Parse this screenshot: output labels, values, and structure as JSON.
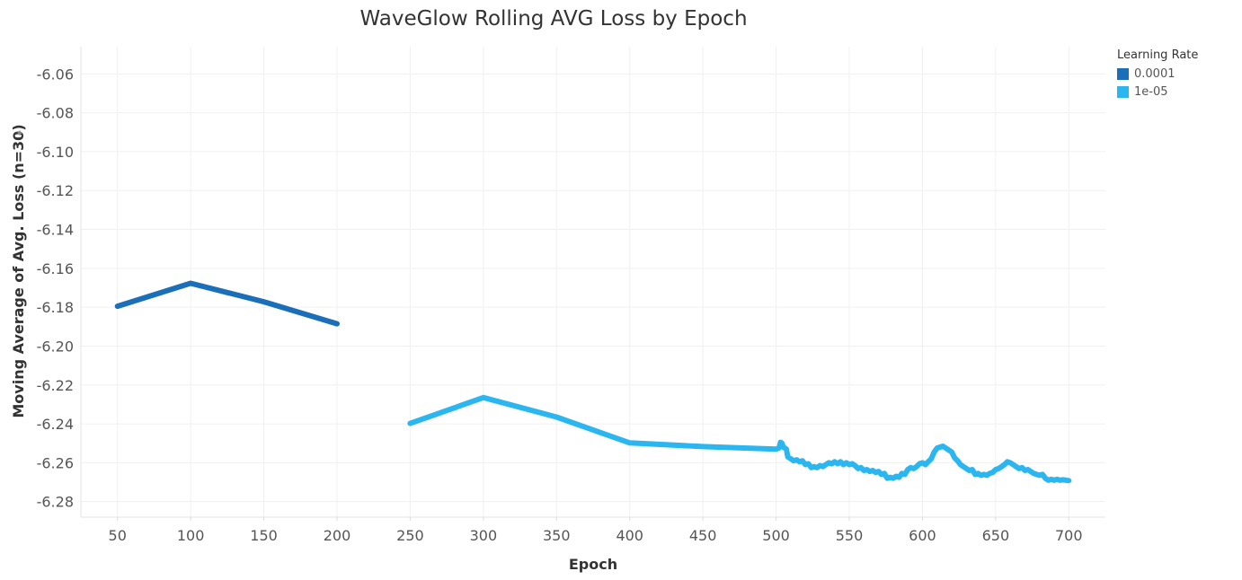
{
  "chart_data": {
    "type": "line",
    "title": "WaveGlow Rolling AVG Loss by Epoch",
    "xlabel": "Epoch",
    "ylabel": "Moving Average of Avg. Loss (n=30)",
    "xlim": [
      25,
      725
    ],
    "ylim": [
      -6.288,
      -6.046
    ],
    "x_ticks": [
      50,
      100,
      150,
      200,
      250,
      300,
      350,
      400,
      450,
      500,
      550,
      600,
      650,
      700
    ],
    "y_ticks": [
      -6.28,
      -6.26,
      -6.24,
      -6.22,
      -6.2,
      -6.18,
      -6.16,
      -6.14,
      -6.12,
      -6.1,
      -6.08,
      -6.06
    ],
    "grid": true,
    "legend": {
      "title": "Learning Rate",
      "position": "top-right"
    },
    "series": [
      {
        "name": "0.0001",
        "color": "#1a6fb8",
        "points": [
          [
            50,
            -6.1795
          ],
          [
            100,
            -6.1677
          ],
          [
            150,
            -6.1772
          ],
          [
            200,
            -6.1885
          ]
        ]
      },
      {
        "name": "1e-05",
        "color": "#2bb6f0",
        "points": [
          [
            250,
            -6.2398
          ],
          [
            300,
            -6.2265
          ],
          [
            350,
            -6.2365
          ],
          [
            400,
            -6.2498
          ],
          [
            450,
            -6.2517
          ],
          [
            500,
            -6.253
          ],
          [
            502,
            -6.2525
          ],
          [
            503,
            -6.2495
          ],
          [
            504,
            -6.25
          ],
          [
            505,
            -6.252
          ],
          [
            507,
            -6.253
          ],
          [
            508,
            -6.257
          ],
          [
            510,
            -6.258
          ],
          [
            512,
            -6.259
          ],
          [
            514,
            -6.2585
          ],
          [
            516,
            -6.2595
          ],
          [
            518,
            -6.259
          ],
          [
            520,
            -6.261
          ],
          [
            522,
            -6.2605
          ],
          [
            524,
            -6.2625
          ],
          [
            526,
            -6.262
          ],
          [
            528,
            -6.2625
          ],
          [
            530,
            -6.2615
          ],
          [
            532,
            -6.262
          ],
          [
            534,
            -6.261
          ],
          [
            536,
            -6.26
          ],
          [
            538,
            -6.2605
          ],
          [
            540,
            -6.2595
          ],
          [
            542,
            -6.2605
          ],
          [
            544,
            -6.2595
          ],
          [
            546,
            -6.261
          ],
          [
            548,
            -6.26
          ],
          [
            550,
            -6.261
          ],
          [
            552,
            -6.2605
          ],
          [
            554,
            -6.2615
          ],
          [
            556,
            -6.263
          ],
          [
            558,
            -6.2625
          ],
          [
            560,
            -6.264
          ],
          [
            562,
            -6.2635
          ],
          [
            564,
            -6.2645
          ],
          [
            566,
            -6.264
          ],
          [
            568,
            -6.265
          ],
          [
            570,
            -6.2645
          ],
          [
            572,
            -6.266
          ],
          [
            574,
            -6.2655
          ],
          [
            576,
            -6.268
          ],
          [
            578,
            -6.2675
          ],
          [
            580,
            -6.268
          ],
          [
            582,
            -6.267
          ],
          [
            584,
            -6.2675
          ],
          [
            586,
            -6.2655
          ],
          [
            588,
            -6.266
          ],
          [
            590,
            -6.2635
          ],
          [
            592,
            -6.2625
          ],
          [
            594,
            -6.263
          ],
          [
            596,
            -6.262
          ],
          [
            598,
            -6.2605
          ],
          [
            600,
            -6.26
          ],
          [
            602,
            -6.261
          ],
          [
            604,
            -6.2595
          ],
          [
            606,
            -6.258
          ],
          [
            608,
            -6.2545
          ],
          [
            610,
            -6.2525
          ],
          [
            612,
            -6.252
          ],
          [
            614,
            -6.2515
          ],
          [
            616,
            -6.2525
          ],
          [
            618,
            -6.2535
          ],
          [
            620,
            -6.2545
          ],
          [
            622,
            -6.2575
          ],
          [
            624,
            -6.259
          ],
          [
            626,
            -6.261
          ],
          [
            628,
            -6.262
          ],
          [
            630,
            -6.263
          ],
          [
            632,
            -6.264
          ],
          [
            634,
            -6.2635
          ],
          [
            636,
            -6.266
          ],
          [
            638,
            -6.2655
          ],
          [
            640,
            -6.2665
          ],
          [
            642,
            -6.266
          ],
          [
            644,
            -6.2665
          ],
          [
            646,
            -6.2655
          ],
          [
            648,
            -6.265
          ],
          [
            650,
            -6.2635
          ],
          [
            652,
            -6.263
          ],
          [
            654,
            -6.262
          ],
          [
            656,
            -6.261
          ],
          [
            658,
            -6.2595
          ],
          [
            660,
            -6.26
          ],
          [
            662,
            -6.261
          ],
          [
            664,
            -6.262
          ],
          [
            666,
            -6.263
          ],
          [
            668,
            -6.2625
          ],
          [
            670,
            -6.264
          ],
          [
            672,
            -6.2635
          ],
          [
            674,
            -6.2645
          ],
          [
            676,
            -6.2655
          ],
          [
            678,
            -6.266
          ],
          [
            680,
            -6.2665
          ],
          [
            682,
            -6.266
          ],
          [
            684,
            -6.268
          ],
          [
            686,
            -6.269
          ],
          [
            688,
            -6.2685
          ],
          [
            690,
            -6.269
          ],
          [
            692,
            -6.2685
          ],
          [
            694,
            -6.269
          ],
          [
            696,
            -6.2688
          ],
          [
            698,
            -6.269
          ],
          [
            700,
            -6.2692
          ]
        ]
      }
    ]
  }
}
